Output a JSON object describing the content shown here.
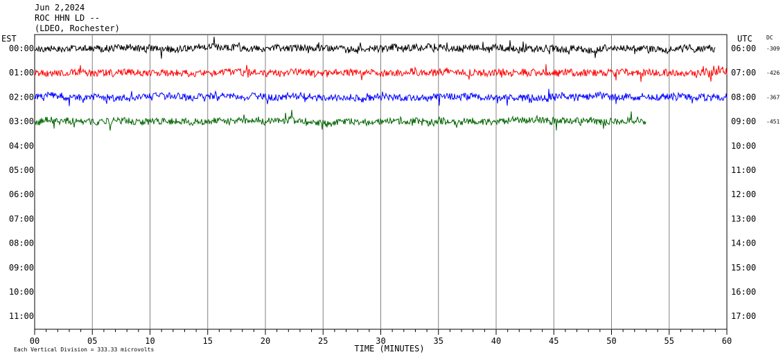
{
  "header": {
    "date": "Jun 2,2024",
    "station": "ROC HHN LD --",
    "location": "(LDEO, Rochester)"
  },
  "chart_data": {
    "type": "line",
    "subtype": "helicorder",
    "left_axis_title": "EST",
    "right_axis_title": "UTC",
    "dc_title": "DC",
    "xlabel": "TIME (MINUTES)",
    "x_ticks": [
      "00",
      "05",
      "10",
      "15",
      "20",
      "25",
      "30",
      "35",
      "40",
      "45",
      "50",
      "55",
      "60"
    ],
    "xlim": [
      0,
      60
    ],
    "grid": "vertical lines every 5 minutes",
    "rows_est": [
      "00:00",
      "01:00",
      "02:00",
      "03:00",
      "04:00",
      "05:00",
      "06:00",
      "07:00",
      "08:00",
      "09:00",
      "10:00",
      "11:00"
    ],
    "rows_utc": [
      "06:00",
      "07:00",
      "08:00",
      "09:00",
      "10:00",
      "11:00",
      "12:00",
      "13:00",
      "14:00",
      "15:00",
      "16:00",
      "17:00"
    ],
    "series": [
      {
        "row": 0,
        "color": "#000000",
        "dc": "-309",
        "end_minute": 59
      },
      {
        "row": 1,
        "color": "#ff0000",
        "dc": "-426",
        "end_minute": 60
      },
      {
        "row": 2,
        "color": "#0000ff",
        "dc": "-367",
        "end_minute": 60
      },
      {
        "row": 3,
        "color": "#006400",
        "dc": "-451",
        "end_minute": 53
      }
    ],
    "footnote": "Each Vertical Division =  333.33 microvolts"
  }
}
